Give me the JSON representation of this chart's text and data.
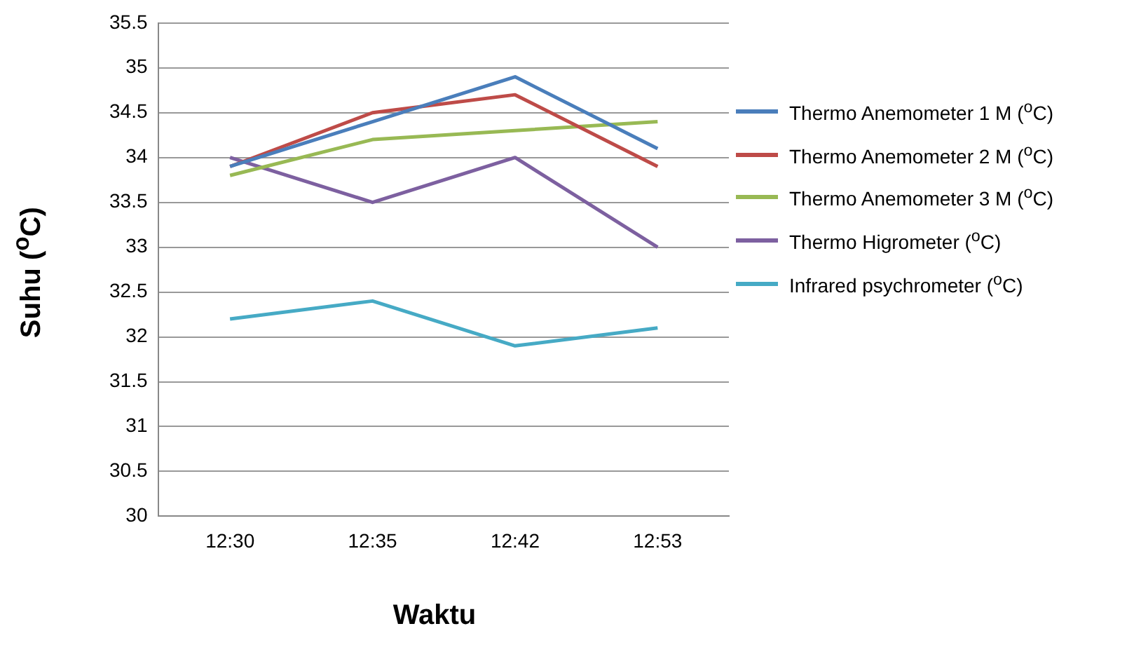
{
  "chart_data": {
    "type": "line",
    "xlabel": "Waktu",
    "ylabel": "Suhu ($^{o}$C)",
    "categories": [
      "12:30",
      "12:35",
      "12:42",
      "12:53"
    ],
    "series": [
      {
        "name": "Thermo Anemometer 1 M  ($^{o}$C)",
        "color": "#4a7ebb",
        "values": [
          33.9,
          34.4,
          34.9,
          34.1
        ]
      },
      {
        "name": "Thermo Anemometer 2 M  ($^{o}$C)",
        "color": "#be4b48",
        "values": [
          33.9,
          34.5,
          34.7,
          33.9
        ]
      },
      {
        "name": "Thermo Anemometer 3 M  ($^{o}$C)",
        "color": "#98b954",
        "values": [
          33.8,
          34.2,
          34.3,
          34.4
        ]
      },
      {
        "name": "Thermo Higrometer ($^{o}$C)",
        "color": "#7d60a0",
        "values": [
          34.0,
          33.5,
          34.0,
          33.0
        ]
      },
      {
        "name": "Infrared psychrometer ($^{o}$C)",
        "color": "#46aac5",
        "values": [
          32.2,
          32.4,
          31.9,
          32.1
        ]
      }
    ],
    "ylim": [
      30,
      35.5
    ],
    "yticks": [
      30,
      30.5,
      31,
      31.5,
      32,
      32.5,
      33,
      33.5,
      34,
      34.5,
      35,
      35.5
    ],
    "grid": "y",
    "legend": "right",
    "marker": "none"
  }
}
